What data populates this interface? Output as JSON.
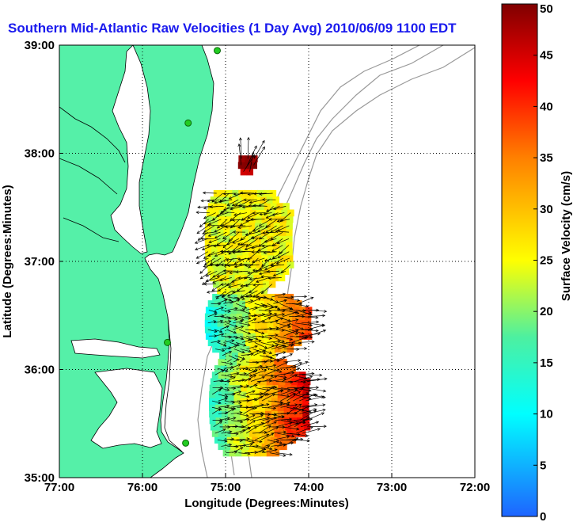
{
  "chart_data": {
    "type": "heatmap",
    "title": "Southern Mid-Atlantic Raw Velocities (1 Day Avg) 2010/06/09 1100 EDT",
    "xlabel": "Longitude (Degrees:Minutes)",
    "ylabel": "Latitude (Degrees:Minutes)",
    "colorbar_label": "Surface Velocity (cm/s)",
    "xlim": [
      -77,
      -72
    ],
    "ylim": [
      35,
      39
    ],
    "clim": [
      0,
      50
    ],
    "x_ticks": [
      {
        "value": -77,
        "label": "77:00"
      },
      {
        "value": -76,
        "label": "76:00"
      },
      {
        "value": -75,
        "label": "75:00"
      },
      {
        "value": -74,
        "label": "74:00"
      },
      {
        "value": -73,
        "label": "73:00"
      },
      {
        "value": -72,
        "label": "72:00"
      }
    ],
    "y_ticks": [
      {
        "value": 35,
        "label": "35:00"
      },
      {
        "value": 36,
        "label": "36:00"
      },
      {
        "value": 37,
        "label": "37:00"
      },
      {
        "value": 38,
        "label": "38:00"
      },
      {
        "value": 39,
        "label": "39:00"
      }
    ],
    "colorbar_ticks": [
      0,
      5,
      10,
      15,
      20,
      25,
      30,
      35,
      40,
      45,
      50
    ],
    "grid": true,
    "grid_style": "dotted",
    "colormap": "jet",
    "land_color": "#55f0a8",
    "contour_color": "#999999",
    "arrow_color": "#000000",
    "station_color": "#22cc22",
    "stations": [
      {
        "lon": -75.1,
        "lat": 38.95
      },
      {
        "lon": -75.45,
        "lat": 38.28
      },
      {
        "lon": -75.7,
        "lat": 36.25
      },
      {
        "lon": -75.48,
        "lat": 35.32
      }
    ],
    "velocity_field": [
      {
        "lat_min": 35.2,
        "lat_max": 36.1,
        "lon_min": -75.2,
        "lon_max": -74.0,
        "speed_west": 15,
        "speed_east": 45,
        "dir_deg": 10
      },
      {
        "lat_min": 36.1,
        "lat_max": 36.7,
        "lon_min": -75.25,
        "lon_max": -74.0,
        "speed_west": 12,
        "speed_east": 40,
        "dir_deg": 0
      },
      {
        "lat_min": 36.7,
        "lat_max": 37.65,
        "lon_min": -75.25,
        "lon_max": -74.2,
        "speed_west": 24,
        "speed_east": 26,
        "dir_deg": 200
      },
      {
        "lat_min": 37.8,
        "lat_max": 37.95,
        "lon_min": -74.85,
        "lon_max": -74.65,
        "speed_west": 47,
        "speed_east": 47,
        "dir_deg": 80
      }
    ]
  }
}
